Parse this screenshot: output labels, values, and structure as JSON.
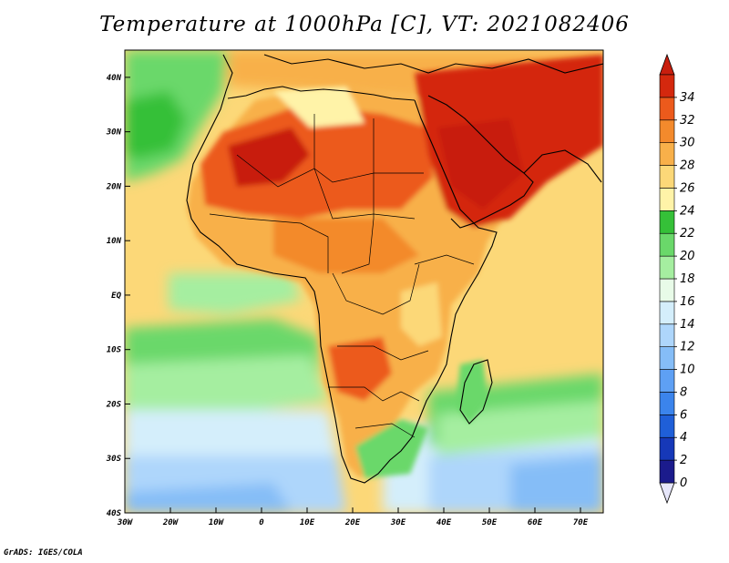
{
  "title": "Temperature at 1000hPa [C], VT: 2021082406",
  "credit": "GrADS: IGES/COLA",
  "map": {
    "lon_range": [
      -30,
      75
    ],
    "lat_range": [
      -40,
      45
    ],
    "lat_ticks": [
      "40N",
      "30N",
      "20N",
      "10N",
      "EQ",
      "10S",
      "20S",
      "30S",
      "40S"
    ],
    "lon_ticks": [
      "30W",
      "20W",
      "10W",
      "0",
      "10E",
      "20E",
      "30E",
      "40E",
      "50E",
      "60E",
      "70E"
    ],
    "field": "temperature",
    "units": "C"
  },
  "colorbar": {
    "levels": [
      "0",
      "2",
      "4",
      "6",
      "8",
      "10",
      "12",
      "14",
      "16",
      "18",
      "20",
      "22",
      "24",
      "26",
      "28",
      "30",
      "32",
      "34"
    ],
    "colors": [
      "#1b1b8c",
      "#1638b8",
      "#1f5fd8",
      "#3b84ec",
      "#5ea0f4",
      "#85bdf7",
      "#aed6fb",
      "#d4eefb",
      "#e8fbe8",
      "#a5eea0",
      "#6ad86a",
      "#35c038",
      "#fff3a8",
      "#fcd878",
      "#f8b04a",
      "#f38a2c",
      "#ec5a1c",
      "#d4280e"
    ],
    "under_color": "#e6e6fa",
    "over_color": "#c81e0e"
  }
}
